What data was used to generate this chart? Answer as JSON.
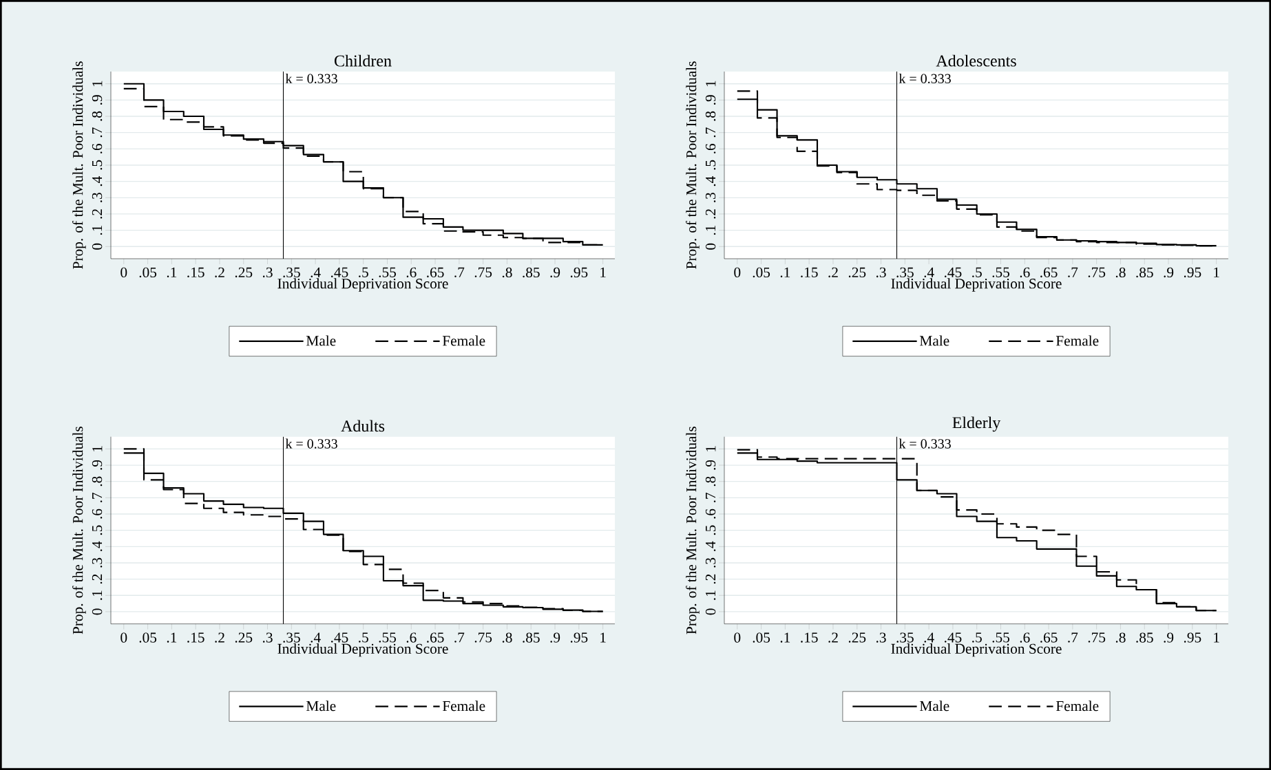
{
  "chart_data": [
    {
      "type": "step",
      "title": "Children",
      "xlabel": "Individual Deprivation Score",
      "ylabel": "Prop. of the Mult. Poor Individuals",
      "x": [
        0,
        0.042,
        0.083,
        0.125,
        0.167,
        0.208,
        0.25,
        0.292,
        0.333,
        0.375,
        0.417,
        0.458,
        0.5,
        0.542,
        0.583,
        0.625,
        0.667,
        0.708,
        0.75,
        0.792,
        0.833,
        0.875,
        0.917,
        0.958,
        1
      ],
      "series": [
        {
          "name": "Male",
          "color": "#000000",
          "line_style": "solid",
          "values": [
            1.0,
            0.9,
            0.83,
            0.8,
            0.72,
            0.685,
            0.66,
            0.645,
            0.62,
            0.565,
            0.52,
            0.4,
            0.36,
            0.3,
            0.18,
            0.17,
            0.12,
            0.1,
            0.1,
            0.08,
            0.05,
            0.05,
            0.03,
            0.01,
            0.01
          ]
        },
        {
          "name": "Female",
          "color": "#000000",
          "line_style": "dashed",
          "values": [
            0.97,
            0.86,
            0.78,
            0.765,
            0.735,
            0.68,
            0.655,
            0.635,
            0.605,
            0.555,
            0.52,
            0.46,
            0.355,
            0.3,
            0.215,
            0.14,
            0.095,
            0.09,
            0.07,
            0.055,
            0.05,
            0.025,
            0.025,
            0.01,
            0.01
          ]
        }
      ],
      "xlim": [
        -0.027,
        1.025
      ],
      "ylim": [
        -0.075,
        1.075
      ],
      "xticks": [
        0,
        {
          "value": 0.05,
          "label": ".05"
        },
        {
          "value": 0.1,
          "label": ".1"
        },
        {
          "value": 0.15,
          "label": ".15"
        },
        {
          "value": 0.2,
          "label": ".2"
        },
        {
          "value": 0.25,
          "label": ".25"
        },
        {
          "value": 0.3,
          "label": ".3"
        },
        {
          "value": 0.35,
          "label": ".35"
        },
        {
          "value": 0.4,
          "label": ".4"
        },
        {
          "value": 0.45,
          "label": ".45"
        },
        {
          "value": 0.5,
          "label": ".5"
        },
        {
          "value": 0.55,
          "label": ".55"
        },
        {
          "value": 0.6,
          "label": ".6"
        },
        {
          "value": 0.65,
          "label": ".65"
        },
        {
          "value": 0.7,
          "label": ".7"
        },
        {
          "value": 0.75,
          "label": ".75"
        },
        {
          "value": 0.8,
          "label": ".8"
        },
        {
          "value": 0.85,
          "label": ".85"
        },
        {
          "value": 0.9,
          "label": ".9"
        },
        {
          "value": 0.95,
          "label": ".95"
        },
        1
      ],
      "yticks": [
        0,
        {
          "value": 0.1,
          "label": ".1"
        },
        {
          "value": 0.2,
          "label": ".2"
        },
        {
          "value": 0.3,
          "label": ".3"
        },
        {
          "value": 0.4,
          "label": ".4"
        },
        {
          "value": 0.5,
          "label": ".5"
        },
        {
          "value": 0.6,
          "label": ".6"
        },
        {
          "value": 0.7,
          "label": ".7"
        },
        {
          "value": 0.8,
          "label": ".8"
        },
        {
          "value": 0.9,
          "label": ".9"
        },
        1
      ],
      "grid": "y",
      "legend": "bottom",
      "ref_lines": [
        {
          "axis": "x",
          "value": 0.333,
          "label": "k = 0.333"
        }
      ]
    },
    {
      "type": "step",
      "title": "Adolescents",
      "xlabel": "Individual Deprivation Score",
      "ylabel": "Prop. of the Mult. Poor Individuals",
      "x": [
        0,
        0.042,
        0.083,
        0.125,
        0.167,
        0.208,
        0.25,
        0.292,
        0.333,
        0.375,
        0.417,
        0.458,
        0.5,
        0.542,
        0.583,
        0.625,
        0.667,
        0.708,
        0.75,
        0.792,
        0.833,
        0.875,
        0.917,
        0.958,
        1
      ],
      "series": [
        {
          "name": "Male",
          "color": "#000000",
          "line_style": "solid",
          "values": [
            0.905,
            0.84,
            0.68,
            0.655,
            0.5,
            0.46,
            0.425,
            0.41,
            0.385,
            0.355,
            0.29,
            0.255,
            0.2,
            0.15,
            0.105,
            0.06,
            0.04,
            0.035,
            0.03,
            0.025,
            0.02,
            0.012,
            0.01,
            0.005,
            0.005
          ]
        },
        {
          "name": "Female",
          "color": "#000000",
          "line_style": "dashed",
          "values": [
            0.955,
            0.79,
            0.67,
            0.585,
            0.495,
            0.455,
            0.385,
            0.35,
            0.345,
            0.315,
            0.28,
            0.23,
            0.195,
            0.12,
            0.095,
            0.055,
            0.04,
            0.03,
            0.025,
            0.025,
            0.015,
            0.01,
            0.008,
            0.005,
            0.005
          ]
        }
      ],
      "xlim": [
        -0.027,
        1.025
      ],
      "ylim": [
        -0.075,
        1.075
      ],
      "xticks": [
        0,
        {
          "value": 0.05,
          "label": ".05"
        },
        {
          "value": 0.1,
          "label": ".1"
        },
        {
          "value": 0.15,
          "label": ".15"
        },
        {
          "value": 0.2,
          "label": ".2"
        },
        {
          "value": 0.25,
          "label": ".25"
        },
        {
          "value": 0.3,
          "label": ".3"
        },
        {
          "value": 0.35,
          "label": ".35"
        },
        {
          "value": 0.4,
          "label": ".4"
        },
        {
          "value": 0.45,
          "label": ".45"
        },
        {
          "value": 0.5,
          "label": ".5"
        },
        {
          "value": 0.55,
          "label": ".55"
        },
        {
          "value": 0.6,
          "label": ".6"
        },
        {
          "value": 0.65,
          "label": ".65"
        },
        {
          "value": 0.7,
          "label": ".7"
        },
        {
          "value": 0.75,
          "label": ".75"
        },
        {
          "value": 0.8,
          "label": ".8"
        },
        {
          "value": 0.85,
          "label": ".85"
        },
        {
          "value": 0.9,
          "label": ".9"
        },
        {
          "value": 0.95,
          "label": ".95"
        },
        1
      ],
      "yticks": [
        0,
        {
          "value": 0.1,
          "label": ".1"
        },
        {
          "value": 0.2,
          "label": ".2"
        },
        {
          "value": 0.3,
          "label": ".3"
        },
        {
          "value": 0.4,
          "label": ".4"
        },
        {
          "value": 0.5,
          "label": ".5"
        },
        {
          "value": 0.6,
          "label": ".6"
        },
        {
          "value": 0.7,
          "label": ".7"
        },
        {
          "value": 0.8,
          "label": ".8"
        },
        {
          "value": 0.9,
          "label": ".9"
        },
        1
      ],
      "grid": "y",
      "legend": "bottom",
      "ref_lines": [
        {
          "axis": "x",
          "value": 0.333,
          "label": "k = 0.333"
        }
      ]
    },
    {
      "type": "step",
      "title": "Adults",
      "xlabel": "Individual Deprivation Score",
      "ylabel": "Prop. of the Mult. Poor Individuals",
      "x": [
        0,
        0.042,
        0.083,
        0.125,
        0.167,
        0.208,
        0.25,
        0.292,
        0.333,
        0.375,
        0.417,
        0.458,
        0.5,
        0.542,
        0.583,
        0.625,
        0.667,
        0.708,
        0.75,
        0.792,
        0.833,
        0.875,
        0.917,
        0.958,
        1
      ],
      "series": [
        {
          "name": "Male",
          "color": "#000000",
          "line_style": "solid",
          "values": [
            0.975,
            0.85,
            0.76,
            0.725,
            0.68,
            0.66,
            0.64,
            0.635,
            0.605,
            0.555,
            0.475,
            0.375,
            0.34,
            0.19,
            0.16,
            0.07,
            0.065,
            0.05,
            0.04,
            0.03,
            0.025,
            0.015,
            0.01,
            0.002,
            0.002
          ]
        },
        {
          "name": "Female",
          "color": "#000000",
          "line_style": "dashed",
          "values": [
            1.0,
            0.81,
            0.75,
            0.665,
            0.635,
            0.61,
            0.595,
            0.585,
            0.57,
            0.505,
            0.47,
            0.37,
            0.29,
            0.26,
            0.175,
            0.13,
            0.085,
            0.06,
            0.05,
            0.035,
            0.027,
            0.018,
            0.008,
            0.002,
            0.002
          ]
        }
      ],
      "xlim": [
        -0.027,
        1.025
      ],
      "ylim": [
        -0.075,
        1.075
      ],
      "xticks": [
        0,
        {
          "value": 0.05,
          "label": ".05"
        },
        {
          "value": 0.1,
          "label": ".1"
        },
        {
          "value": 0.15,
          "label": ".15"
        },
        {
          "value": 0.2,
          "label": ".2"
        },
        {
          "value": 0.25,
          "label": ".25"
        },
        {
          "value": 0.3,
          "label": ".3"
        },
        {
          "value": 0.35,
          "label": ".35"
        },
        {
          "value": 0.4,
          "label": ".4"
        },
        {
          "value": 0.45,
          "label": ".45"
        },
        {
          "value": 0.5,
          "label": ".5"
        },
        {
          "value": 0.55,
          "label": ".55"
        },
        {
          "value": 0.6,
          "label": ".6"
        },
        {
          "value": 0.65,
          "label": ".65"
        },
        {
          "value": 0.7,
          "label": ".7"
        },
        {
          "value": 0.75,
          "label": ".75"
        },
        {
          "value": 0.8,
          "label": ".8"
        },
        {
          "value": 0.85,
          "label": ".85"
        },
        {
          "value": 0.9,
          "label": ".9"
        },
        {
          "value": 0.95,
          "label": ".95"
        },
        1
      ],
      "yticks": [
        0,
        {
          "value": 0.1,
          "label": ".1"
        },
        {
          "value": 0.2,
          "label": ".2"
        },
        {
          "value": 0.3,
          "label": ".3"
        },
        {
          "value": 0.4,
          "label": ".4"
        },
        {
          "value": 0.5,
          "label": ".5"
        },
        {
          "value": 0.6,
          "label": ".6"
        },
        {
          "value": 0.7,
          "label": ".7"
        },
        {
          "value": 0.8,
          "label": ".8"
        },
        {
          "value": 0.9,
          "label": ".9"
        },
        1
      ],
      "grid": "y",
      "legend": "bottom",
      "ref_lines": [
        {
          "axis": "x",
          "value": 0.333,
          "label": "k = 0.333"
        }
      ]
    },
    {
      "type": "step",
      "title": "Elderly",
      "xlabel": "Individual Deprivation Score",
      "ylabel": "Prop. of the Mult. Poor Individuals",
      "x": [
        0,
        0.042,
        0.083,
        0.125,
        0.167,
        0.208,
        0.25,
        0.292,
        0.333,
        0.375,
        0.417,
        0.458,
        0.5,
        0.542,
        0.583,
        0.625,
        0.667,
        0.708,
        0.75,
        0.792,
        0.833,
        0.875,
        0.917,
        0.958,
        1
      ],
      "series": [
        {
          "name": "Male",
          "color": "#000000",
          "line_style": "solid",
          "values": [
            0.975,
            0.935,
            0.935,
            0.925,
            0.915,
            0.915,
            0.915,
            0.915,
            0.81,
            0.745,
            0.725,
            0.585,
            0.555,
            0.455,
            0.435,
            0.385,
            0.385,
            0.28,
            0.22,
            0.155,
            0.135,
            0.05,
            0.03,
            0.007,
            0.007
          ]
        },
        {
          "name": "Female",
          "color": "#000000",
          "line_style": "dashed",
          "values": [
            0.995,
            0.95,
            0.94,
            0.94,
            0.94,
            0.94,
            0.94,
            0.94,
            0.94,
            0.745,
            0.705,
            0.625,
            0.6,
            0.54,
            0.52,
            0.5,
            0.475,
            0.34,
            0.245,
            0.195,
            0.135,
            0.055,
            0.03,
            0.007,
            0.007
          ]
        }
      ],
      "xlim": [
        -0.027,
        1.025
      ],
      "ylim": [
        -0.075,
        1.075
      ],
      "xticks": [
        0,
        {
          "value": 0.05,
          "label": ".05"
        },
        {
          "value": 0.1,
          "label": ".1"
        },
        {
          "value": 0.15,
          "label": ".15"
        },
        {
          "value": 0.2,
          "label": ".2"
        },
        {
          "value": 0.25,
          "label": ".25"
        },
        {
          "value": 0.3,
          "label": ".3"
        },
        {
          "value": 0.35,
          "label": ".35"
        },
        {
          "value": 0.4,
          "label": ".4"
        },
        {
          "value": 0.45,
          "label": ".45"
        },
        {
          "value": 0.5,
          "label": ".5"
        },
        {
          "value": 0.55,
          "label": ".55"
        },
        {
          "value": 0.6,
          "label": ".6"
        },
        {
          "value": 0.65,
          "label": ".65"
        },
        {
          "value": 0.7,
          "label": ".7"
        },
        {
          "value": 0.75,
          "label": ".75"
        },
        {
          "value": 0.8,
          "label": ".8"
        },
        {
          "value": 0.85,
          "label": ".85"
        },
        {
          "value": 0.9,
          "label": ".9"
        },
        {
          "value": 0.95,
          "label": ".95"
        },
        1
      ],
      "yticks": [
        0,
        {
          "value": 0.1,
          "label": ".1"
        },
        {
          "value": 0.2,
          "label": ".2"
        },
        {
          "value": 0.3,
          "label": ".3"
        },
        {
          "value": 0.4,
          "label": ".4"
        },
        {
          "value": 0.5,
          "label": ".5"
        },
        {
          "value": 0.6,
          "label": ".6"
        },
        {
          "value": 0.7,
          "label": ".7"
        },
        {
          "value": 0.8,
          "label": ".8"
        },
        {
          "value": 0.9,
          "label": ".9"
        },
        1
      ],
      "grid": "y",
      "legend": "bottom",
      "ref_lines": [
        {
          "axis": "x",
          "value": 0.333,
          "label": "k = 0.333"
        }
      ]
    }
  ]
}
